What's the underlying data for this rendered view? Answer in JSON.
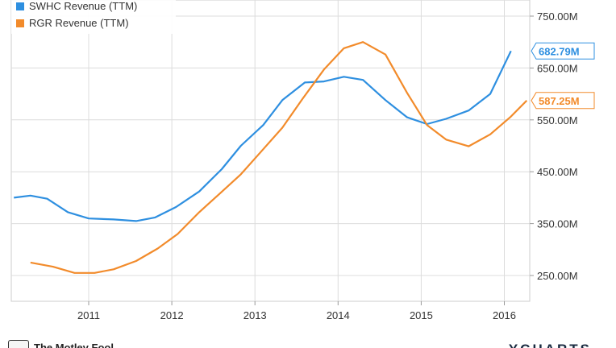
{
  "chart_data": {
    "type": "line",
    "title": "",
    "xlabel": "",
    "ylabel": "",
    "x_ticks": [
      "2011",
      "2012",
      "2013",
      "2014",
      "2015",
      "2016"
    ],
    "y_ticks": [
      "250.00M",
      "350.00M",
      "450.00M",
      "550.00M",
      "650.00M",
      "750.00M"
    ],
    "ylim": [
      200,
      755
    ],
    "xlim": [
      2010.1,
      2016.27
    ],
    "grid": true,
    "legend_position": "top-left",
    "series": [
      {
        "name": "SWHC Revenue (TTM)",
        "color": "#2e8fe0",
        "last_label": "682.79M",
        "last_value": 682.79,
        "points": [
          [
            2010.1,
            400
          ],
          [
            2010.3,
            404
          ],
          [
            2010.5,
            398
          ],
          [
            2010.75,
            372
          ],
          [
            2011.0,
            360
          ],
          [
            2011.3,
            358
          ],
          [
            2011.57,
            355
          ],
          [
            2011.8,
            362
          ],
          [
            2012.05,
            382
          ],
          [
            2012.33,
            412
          ],
          [
            2012.6,
            455
          ],
          [
            2012.83,
            500
          ],
          [
            2013.1,
            540
          ],
          [
            2013.33,
            588
          ],
          [
            2013.6,
            622
          ],
          [
            2013.83,
            624
          ],
          [
            2014.07,
            633
          ],
          [
            2014.3,
            627
          ],
          [
            2014.57,
            588
          ],
          [
            2014.83,
            555
          ],
          [
            2015.07,
            542
          ],
          [
            2015.3,
            552
          ],
          [
            2015.57,
            568
          ],
          [
            2015.83,
            600
          ],
          [
            2016.08,
            682.79
          ]
        ]
      },
      {
        "name": "RGR Revenue (TTM)",
        "color": "#f28b2b",
        "last_label": "587.25M",
        "last_value": 587.25,
        "points": [
          [
            2010.3,
            275
          ],
          [
            2010.57,
            267
          ],
          [
            2010.83,
            255
          ],
          [
            2011.07,
            255
          ],
          [
            2011.3,
            262
          ],
          [
            2011.57,
            278
          ],
          [
            2011.83,
            302
          ],
          [
            2012.07,
            330
          ],
          [
            2012.33,
            372
          ],
          [
            2012.57,
            407
          ],
          [
            2012.83,
            445
          ],
          [
            2013.07,
            488
          ],
          [
            2013.33,
            535
          ],
          [
            2013.57,
            590
          ],
          [
            2013.83,
            647
          ],
          [
            2014.07,
            688
          ],
          [
            2014.3,
            700
          ],
          [
            2014.57,
            676
          ],
          [
            2014.83,
            602
          ],
          [
            2015.07,
            540
          ],
          [
            2015.3,
            512
          ],
          [
            2015.57,
            499
          ],
          [
            2015.83,
            522
          ],
          [
            2016.07,
            555
          ],
          [
            2016.27,
            587.25
          ]
        ]
      }
    ]
  },
  "footer": {
    "brand_left": "The Motley Fool",
    "brand_right": "YCHARTS"
  }
}
